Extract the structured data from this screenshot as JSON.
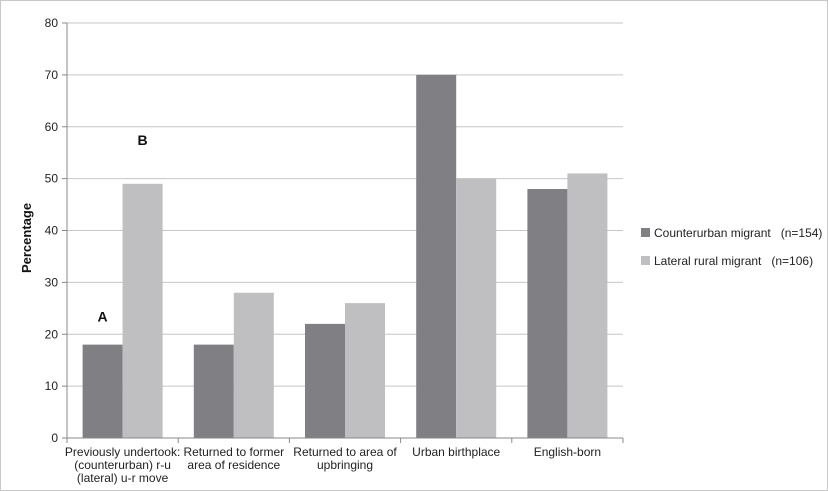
{
  "chart_data": {
    "type": "bar",
    "ylabel": "Percentage",
    "ylim": [
      0,
      80
    ],
    "yticks": [
      0,
      10,
      20,
      30,
      40,
      50,
      60,
      70,
      80
    ],
    "grid": true,
    "legend_position": "right",
    "categories": [
      [
        "Previously undertook:",
        "(counterurban) r-u",
        "(lateral) u-r move"
      ],
      [
        "Returned to former",
        "area of residence"
      ],
      [
        "Returned to area of",
        "upbringing"
      ],
      [
        "Urban birthplace"
      ],
      [
        "English-born"
      ]
    ],
    "series": [
      {
        "name": "Counterurban migrant   (n=154)",
        "color": "#808084",
        "values": [
          18,
          18,
          22,
          70,
          48
        ]
      },
      {
        "name": "Lateral rural migrant   (n=106)",
        "color": "#bfbfc1",
        "values": [
          49,
          28,
          26,
          50,
          51
        ]
      }
    ],
    "annotations": [
      {
        "text": "A",
        "category": 0,
        "series": 0,
        "y": 22.5
      },
      {
        "text": "B",
        "category": 0,
        "series": 1,
        "y": 56.5
      }
    ]
  }
}
